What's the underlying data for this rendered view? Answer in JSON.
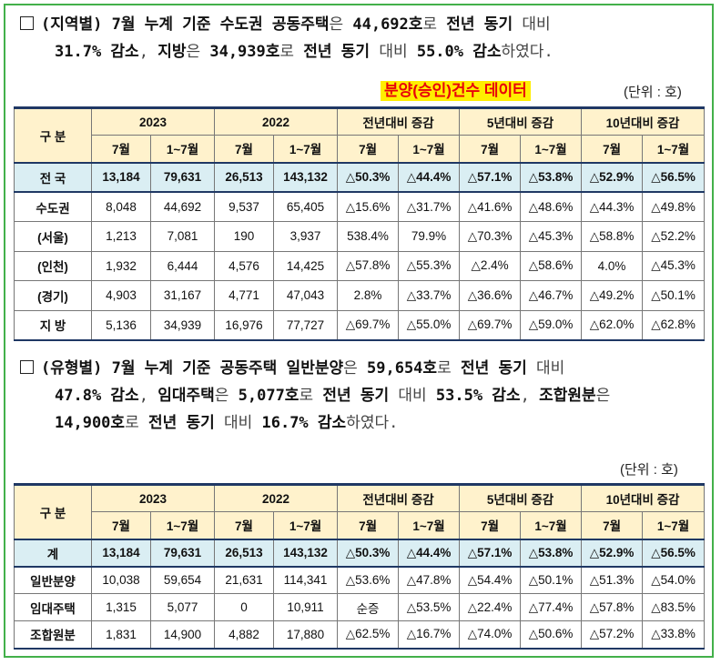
{
  "section1": {
    "line1": [
      {
        "t": "(지역별) 7월 누계 기준 수도권 공동주택",
        "s": "b"
      },
      {
        "t": "은 ",
        "s": "l"
      },
      {
        "t": "44,692호",
        "s": "b"
      },
      {
        "t": "로 ",
        "s": "l"
      },
      {
        "t": "전년 동기 ",
        "s": "b"
      },
      {
        "t": "대비",
        "s": "l"
      }
    ],
    "line2": [
      {
        "t": "31.7% 감소",
        "s": "b"
      },
      {
        "t": ", ",
        "s": "l"
      },
      {
        "t": "지방",
        "s": "b"
      },
      {
        "t": "은 ",
        "s": "l"
      },
      {
        "t": "34,939호",
        "s": "b"
      },
      {
        "t": "로 ",
        "s": "l"
      },
      {
        "t": "전년 동기 ",
        "s": "b"
      },
      {
        "t": "대비 ",
        "s": "l"
      },
      {
        "t": "55.0% 감소",
        "s": "b"
      },
      {
        "t": "하였다.",
        "s": "l"
      }
    ],
    "highlight_title": "분양(승인)건수 데이터",
    "unit": "(단위 : 호)"
  },
  "section2": {
    "line1": [
      {
        "t": "(유형별) 7월 누계 기준 공동주택 일반분양",
        "s": "b"
      },
      {
        "t": "은 ",
        "s": "l"
      },
      {
        "t": "59,654호",
        "s": "b"
      },
      {
        "t": "로 ",
        "s": "l"
      },
      {
        "t": "전년 동기 ",
        "s": "b"
      },
      {
        "t": "대비",
        "s": "l"
      }
    ],
    "line2": [
      {
        "t": "47.8% 감소",
        "s": "b"
      },
      {
        "t": ", ",
        "s": "l"
      },
      {
        "t": "임대주택",
        "s": "b"
      },
      {
        "t": "은 ",
        "s": "l"
      },
      {
        "t": "5,077호",
        "s": "b"
      },
      {
        "t": "로 ",
        "s": "l"
      },
      {
        "t": "전년 동기 ",
        "s": "b"
      },
      {
        "t": "대비 ",
        "s": "l"
      },
      {
        "t": "53.5% 감소",
        "s": "b"
      },
      {
        "t": ", ",
        "s": "l"
      },
      {
        "t": "조합원분",
        "s": "b"
      },
      {
        "t": "은",
        "s": "l"
      }
    ],
    "line3": [
      {
        "t": "14,900호",
        "s": "b"
      },
      {
        "t": "로 ",
        "s": "l"
      },
      {
        "t": "전년 동기 ",
        "s": "b"
      },
      {
        "t": "대비 ",
        "s": "l"
      },
      {
        "t": "16.7% 감소",
        "s": "b"
      },
      {
        "t": "하였다.",
        "s": "l"
      }
    ],
    "unit": "(단위 : 호)"
  },
  "table_headers": {
    "category": "구 분",
    "groups": [
      "2023",
      "2022",
      "전년대비 증감",
      "5년대비 증감",
      "10년대비 증감"
    ],
    "sub": [
      "7월",
      "1~7월"
    ]
  },
  "table1": {
    "rows": [
      {
        "label": "전 국",
        "total": true,
        "v": [
          "13,184",
          "79,631",
          "26,513",
          "143,132",
          "△50.3%",
          "△44.4%",
          "△57.1%",
          "△53.8%",
          "△52.9%",
          "△56.5%"
        ]
      },
      {
        "label": "수도권",
        "v": [
          "8,048",
          "44,692",
          "9,537",
          "65,405",
          "△15.6%",
          "△31.7%",
          "△41.6%",
          "△48.6%",
          "△44.3%",
          "△49.8%"
        ]
      },
      {
        "label": "(서울)",
        "v": [
          "1,213",
          "7,081",
          "190",
          "3,937",
          "538.4%",
          "79.9%",
          "△70.3%",
          "△45.3%",
          "△58.8%",
          "△52.2%"
        ]
      },
      {
        "label": "(인천)",
        "v": [
          "1,932",
          "6,444",
          "4,576",
          "14,425",
          "△57.8%",
          "△55.3%",
          "△2.4%",
          "△58.6%",
          "4.0%",
          "△45.3%"
        ]
      },
      {
        "label": "(경기)",
        "v": [
          "4,903",
          "31,167",
          "4,771",
          "47,043",
          "2.8%",
          "△33.7%",
          "△36.6%",
          "△46.7%",
          "△49.2%",
          "△50.1%"
        ]
      },
      {
        "label": "지 방",
        "v": [
          "5,136",
          "34,939",
          "16,976",
          "77,727",
          "△69.7%",
          "△55.0%",
          "△69.7%",
          "△59.0%",
          "△62.0%",
          "△62.8%"
        ]
      }
    ]
  },
  "table2": {
    "rows": [
      {
        "label": "계",
        "total": true,
        "v": [
          "13,184",
          "79,631",
          "26,513",
          "143,132",
          "△50.3%",
          "△44.4%",
          "△57.1%",
          "△53.8%",
          "△52.9%",
          "△56.5%"
        ]
      },
      {
        "label": "일반분양",
        "v": [
          "10,038",
          "59,654",
          "21,631",
          "114,341",
          "△53.6%",
          "△47.8%",
          "△54.4%",
          "△50.1%",
          "△51.3%",
          "△54.0%"
        ]
      },
      {
        "label": "임대주택",
        "v": [
          "1,315",
          "5,077",
          "0",
          "10,911",
          "순증",
          "△53.5%",
          "△22.4%",
          "△77.4%",
          "△57.8%",
          "△83.5%"
        ]
      },
      {
        "label": "조합원분",
        "v": [
          "1,831",
          "14,900",
          "4,882",
          "17,880",
          "△62.5%",
          "△16.7%",
          "△74.0%",
          "△50.6%",
          "△57.2%",
          "△33.8%"
        ]
      }
    ]
  },
  "colors": {
    "frame": "#43b04a",
    "header_bg": "#fff2cc",
    "total_bg": "#daeef3",
    "highlight_bg": "#ffee00",
    "highlight_text": "#e8000b"
  }
}
